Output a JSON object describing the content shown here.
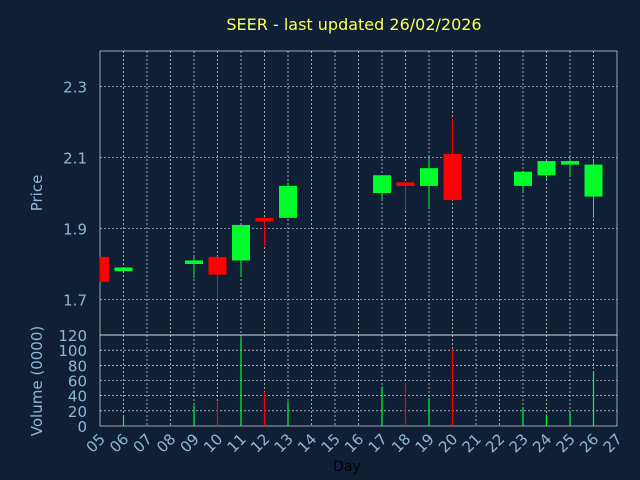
{
  "colors": {
    "background": "#0f2036",
    "title": "#ffff55",
    "axis_text": "#8fb8d6",
    "xlabel_text": "#000000",
    "grid": "#ffffff",
    "up": "#00ff2a",
    "down": "#ff0000"
  },
  "chart_data": [
    {
      "type": "candlestick",
      "title": "SEER - last updated 26/02/2026",
      "xlabel": "",
      "ylabel": "Price",
      "ylim": [
        1.6,
        2.4
      ],
      "yticks": [
        "1.7",
        "1.9",
        "2.1",
        "2.3"
      ],
      "xlim": [
        5,
        27
      ],
      "grid": true,
      "candles": [
        {
          "day": 5,
          "open": 1.82,
          "high": 1.82,
          "low": 1.75,
          "close": 1.75
        },
        {
          "day": 6,
          "open": 1.78,
          "high": 1.79,
          "low": 1.78,
          "close": 1.79
        },
        {
          "day": 9,
          "open": 1.8,
          "high": 1.82,
          "low": 1.76,
          "close": 1.81
        },
        {
          "day": 10,
          "open": 1.82,
          "high": 1.82,
          "low": 1.7,
          "close": 1.77
        },
        {
          "day": 11,
          "open": 1.81,
          "high": 1.91,
          "low": 1.77,
          "close": 1.91
        },
        {
          "day": 12,
          "open": 1.93,
          "high": 1.93,
          "low": 1.85,
          "close": 1.92
        },
        {
          "day": 13,
          "open": 1.93,
          "high": 2.03,
          "low": 1.93,
          "close": 2.02
        },
        {
          "day": 17,
          "open": 2.0,
          "high": 2.05,
          "low": 1.98,
          "close": 2.05
        },
        {
          "day": 18,
          "open": 2.03,
          "high": 2.03,
          "low": 1.95,
          "close": 2.02
        },
        {
          "day": 19,
          "open": 2.02,
          "high": 2.1,
          "low": 1.96,
          "close": 2.07
        },
        {
          "day": 20,
          "open": 2.11,
          "high": 2.21,
          "low": 1.98,
          "close": 1.98
        },
        {
          "day": 23,
          "open": 2.02,
          "high": 2.06,
          "low": 2.0,
          "close": 2.06
        },
        {
          "day": 24,
          "open": 2.05,
          "high": 2.09,
          "low": 2.04,
          "close": 2.09
        },
        {
          "day": 25,
          "open": 2.08,
          "high": 2.1,
          "low": 2.05,
          "close": 2.09
        },
        {
          "day": 26,
          "open": 1.99,
          "high": 2.09,
          "low": 1.93,
          "close": 2.08
        }
      ]
    },
    {
      "type": "bar",
      "xlabel": "Day",
      "ylabel": "Volume (0000)",
      "ylim": [
        0,
        120
      ],
      "yticks": [
        "0",
        "20",
        "40",
        "60",
        "80",
        "100",
        "120"
      ],
      "xlim": [
        5,
        27
      ],
      "xticks": [
        "05",
        "06",
        "07",
        "08",
        "09",
        "10",
        "11",
        "12",
        "13",
        "14",
        "15",
        "16",
        "17",
        "18",
        "19",
        "20",
        "21",
        "22",
        "23",
        "24",
        "25",
        "26",
        "27"
      ],
      "grid": true,
      "bars": [
        {
          "day": 5,
          "value": 0,
          "dir": "down"
        },
        {
          "day": 6,
          "value": 12,
          "dir": "up"
        },
        {
          "day": 9,
          "value": 27,
          "dir": "up"
        },
        {
          "day": 10,
          "value": 32,
          "dir": "down"
        },
        {
          "day": 11,
          "value": 117,
          "dir": "up"
        },
        {
          "day": 12,
          "value": 45,
          "dir": "down"
        },
        {
          "day": 13,
          "value": 32,
          "dir": "up"
        },
        {
          "day": 17,
          "value": 52,
          "dir": "up"
        },
        {
          "day": 18,
          "value": 57,
          "dir": "down"
        },
        {
          "day": 19,
          "value": 37,
          "dir": "up"
        },
        {
          "day": 20,
          "value": 100,
          "dir": "down"
        },
        {
          "day": 23,
          "value": 25,
          "dir": "up"
        },
        {
          "day": 24,
          "value": 15,
          "dir": "up"
        },
        {
          "day": 25,
          "value": 20,
          "dir": "up"
        },
        {
          "day": 26,
          "value": 70,
          "dir": "up"
        }
      ]
    }
  ]
}
